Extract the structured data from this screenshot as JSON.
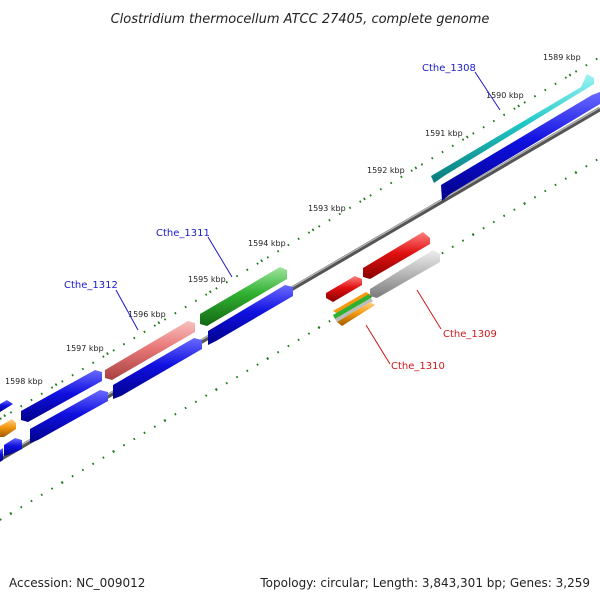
{
  "title": "Clostridium thermocellum ATCC 27405, complete genome",
  "footer": {
    "accession": "Accession: NC_009012",
    "summary": "Topology: circular; Length: 3,843,301 bp; Genes: 3,259"
  },
  "kbp_labels": [
    "1589 kbp",
    "1590 kbp",
    "1591 kbp",
    "1592 kbp",
    "1593 kbp",
    "1594 kbp",
    "1595 kbp",
    "1596 kbp",
    "1597 kbp",
    "1598 kbp"
  ],
  "gene_labels": {
    "cthe_1308": "Cthe_1308",
    "cthe_1309": "Cthe_1309",
    "cthe_1310": "Cthe_1310",
    "cthe_1311": "Cthe_1311",
    "cthe_1312": "Cthe_1312"
  },
  "colors": {
    "cds_blue": "#1010e0",
    "cthe_1308": "#20c8c8",
    "cthe_1311": "#30b030",
    "cthe_1312": "#e87878",
    "cthe_1309": "#bcbcbc",
    "red_gene": "#e01010",
    "orange_gene": "#f59a10",
    "backbone": "#777777",
    "tick_green": "#1a7a1a"
  }
}
